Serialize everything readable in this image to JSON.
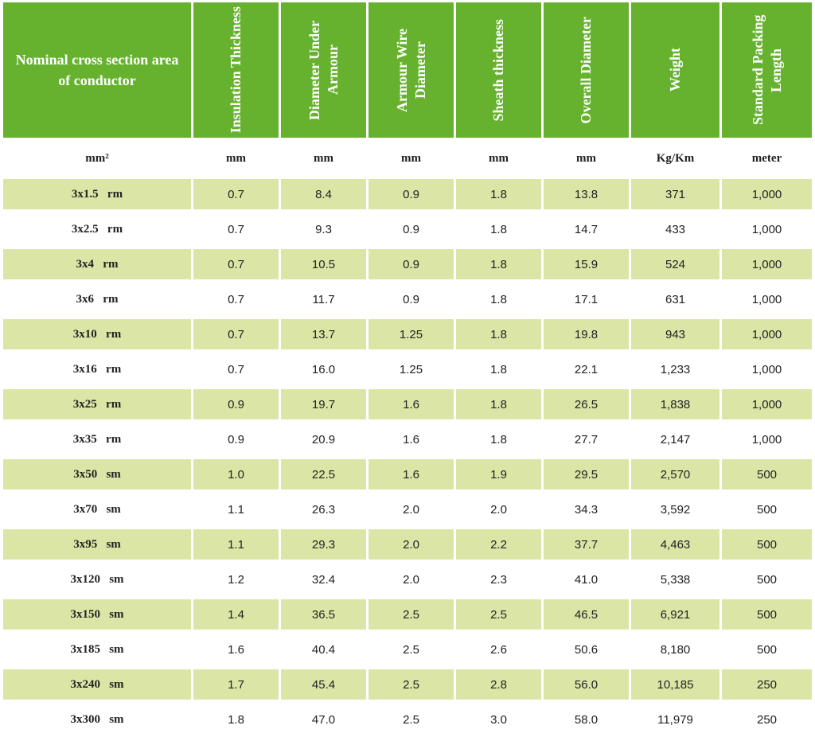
{
  "headers": [
    "Nominal cross section area of conductor",
    "Insulation Thickness",
    "Diameter Under Armour",
    "Armour Wire Diameter",
    "Sheath thickness",
    "Overall Diameter",
    "Weight",
    "Standard Packing Length"
  ],
  "units": [
    "mm²",
    "mm",
    "mm",
    "mm",
    "mm",
    "mm",
    "Kg/Km",
    "meter"
  ],
  "rows": [
    [
      "3x1.5   rm",
      "0.7",
      "8.4",
      "0.9",
      "1.8",
      "13.8",
      "371",
      "1,000"
    ],
    [
      "3x2.5   rm",
      "0.7",
      "9.3",
      "0.9",
      "1.8",
      "14.7",
      "433",
      "1,000"
    ],
    [
      "3x4   rm",
      "0.7",
      "10.5",
      "0.9",
      "1.8",
      "15.9",
      "524",
      "1,000"
    ],
    [
      "3x6   rm",
      "0.7",
      "11.7",
      "0.9",
      "1.8",
      "17.1",
      "631",
      "1,000"
    ],
    [
      "3x10   rm",
      "0.7",
      "13.7",
      "1.25",
      "1.8",
      "19.8",
      "943",
      "1,000"
    ],
    [
      "3x16   rm",
      "0.7",
      "16.0",
      "1.25",
      "1.8",
      "22.1",
      "1,233",
      "1,000"
    ],
    [
      "3x25   rm",
      "0.9",
      "19.7",
      "1.6",
      "1.8",
      "26.5",
      "1,838",
      "1,000"
    ],
    [
      "3x35   rm",
      "0.9",
      "20.9",
      "1.6",
      "1.8",
      "27.7",
      "2,147",
      "1,000"
    ],
    [
      "3x50   sm",
      "1.0",
      "22.5",
      "1.6",
      "1.9",
      "29.5",
      "2,570",
      "500"
    ],
    [
      "3x70   sm",
      "1.1",
      "26.3",
      "2.0",
      "2.0",
      "34.3",
      "3,592",
      "500"
    ],
    [
      "3x95   sm",
      "1.1",
      "29.3",
      "2.0",
      "2.2",
      "37.7",
      "4,463",
      "500"
    ],
    [
      "3x120   sm",
      "1.2",
      "32.4",
      "2.0",
      "2.3",
      "41.0",
      "5,338",
      "500"
    ],
    [
      "3x150   sm",
      "1.4",
      "36.5",
      "2.5",
      "2.5",
      "46.5",
      "6,921",
      "500"
    ],
    [
      "3x185   sm",
      "1.6",
      "40.4",
      "2.5",
      "2.6",
      "50.6",
      "8,180",
      "500"
    ],
    [
      "3x240   sm",
      "1.7",
      "45.4",
      "2.5",
      "2.8",
      "56.0",
      "10,185",
      "250"
    ],
    [
      "3x300   sm",
      "1.8",
      "47.0",
      "2.5",
      "3.0",
      "58.0",
      "11,979",
      "250"
    ]
  ],
  "colors": {
    "header_green": "#66b22f",
    "stripe": "#dbe6a6",
    "text": "#222222"
  }
}
